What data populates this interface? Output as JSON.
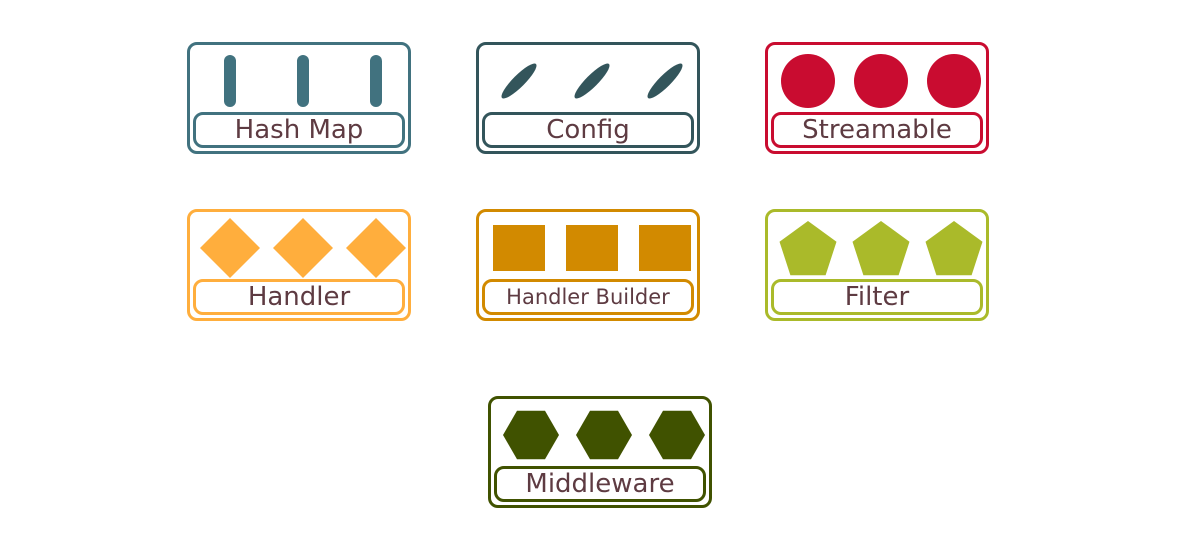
{
  "legend": [
    {
      "id": "hash-map",
      "label": "Hash Map",
      "color": "#41727f",
      "shape": "vertical-pill",
      "count": 3
    },
    {
      "id": "config",
      "label": "Config",
      "color": "#33555b",
      "shape": "diagonal-pill",
      "count": 3
    },
    {
      "id": "streamable",
      "label": "Streamable",
      "color": "#c90c30",
      "shape": "circle",
      "count": 3
    },
    {
      "id": "handler",
      "label": "Handler",
      "color": "#ffae3d",
      "shape": "diamond",
      "count": 3
    },
    {
      "id": "handler-builder",
      "label": "Handler Builder",
      "color": "#d28a00",
      "shape": "square",
      "count": 3
    },
    {
      "id": "filter",
      "label": "Filter",
      "color": "#aaba2a",
      "shape": "pentagon",
      "count": 3
    },
    {
      "id": "middleware",
      "label": "Middleware",
      "color": "#405200",
      "shape": "hexagon",
      "count": 3
    }
  ]
}
